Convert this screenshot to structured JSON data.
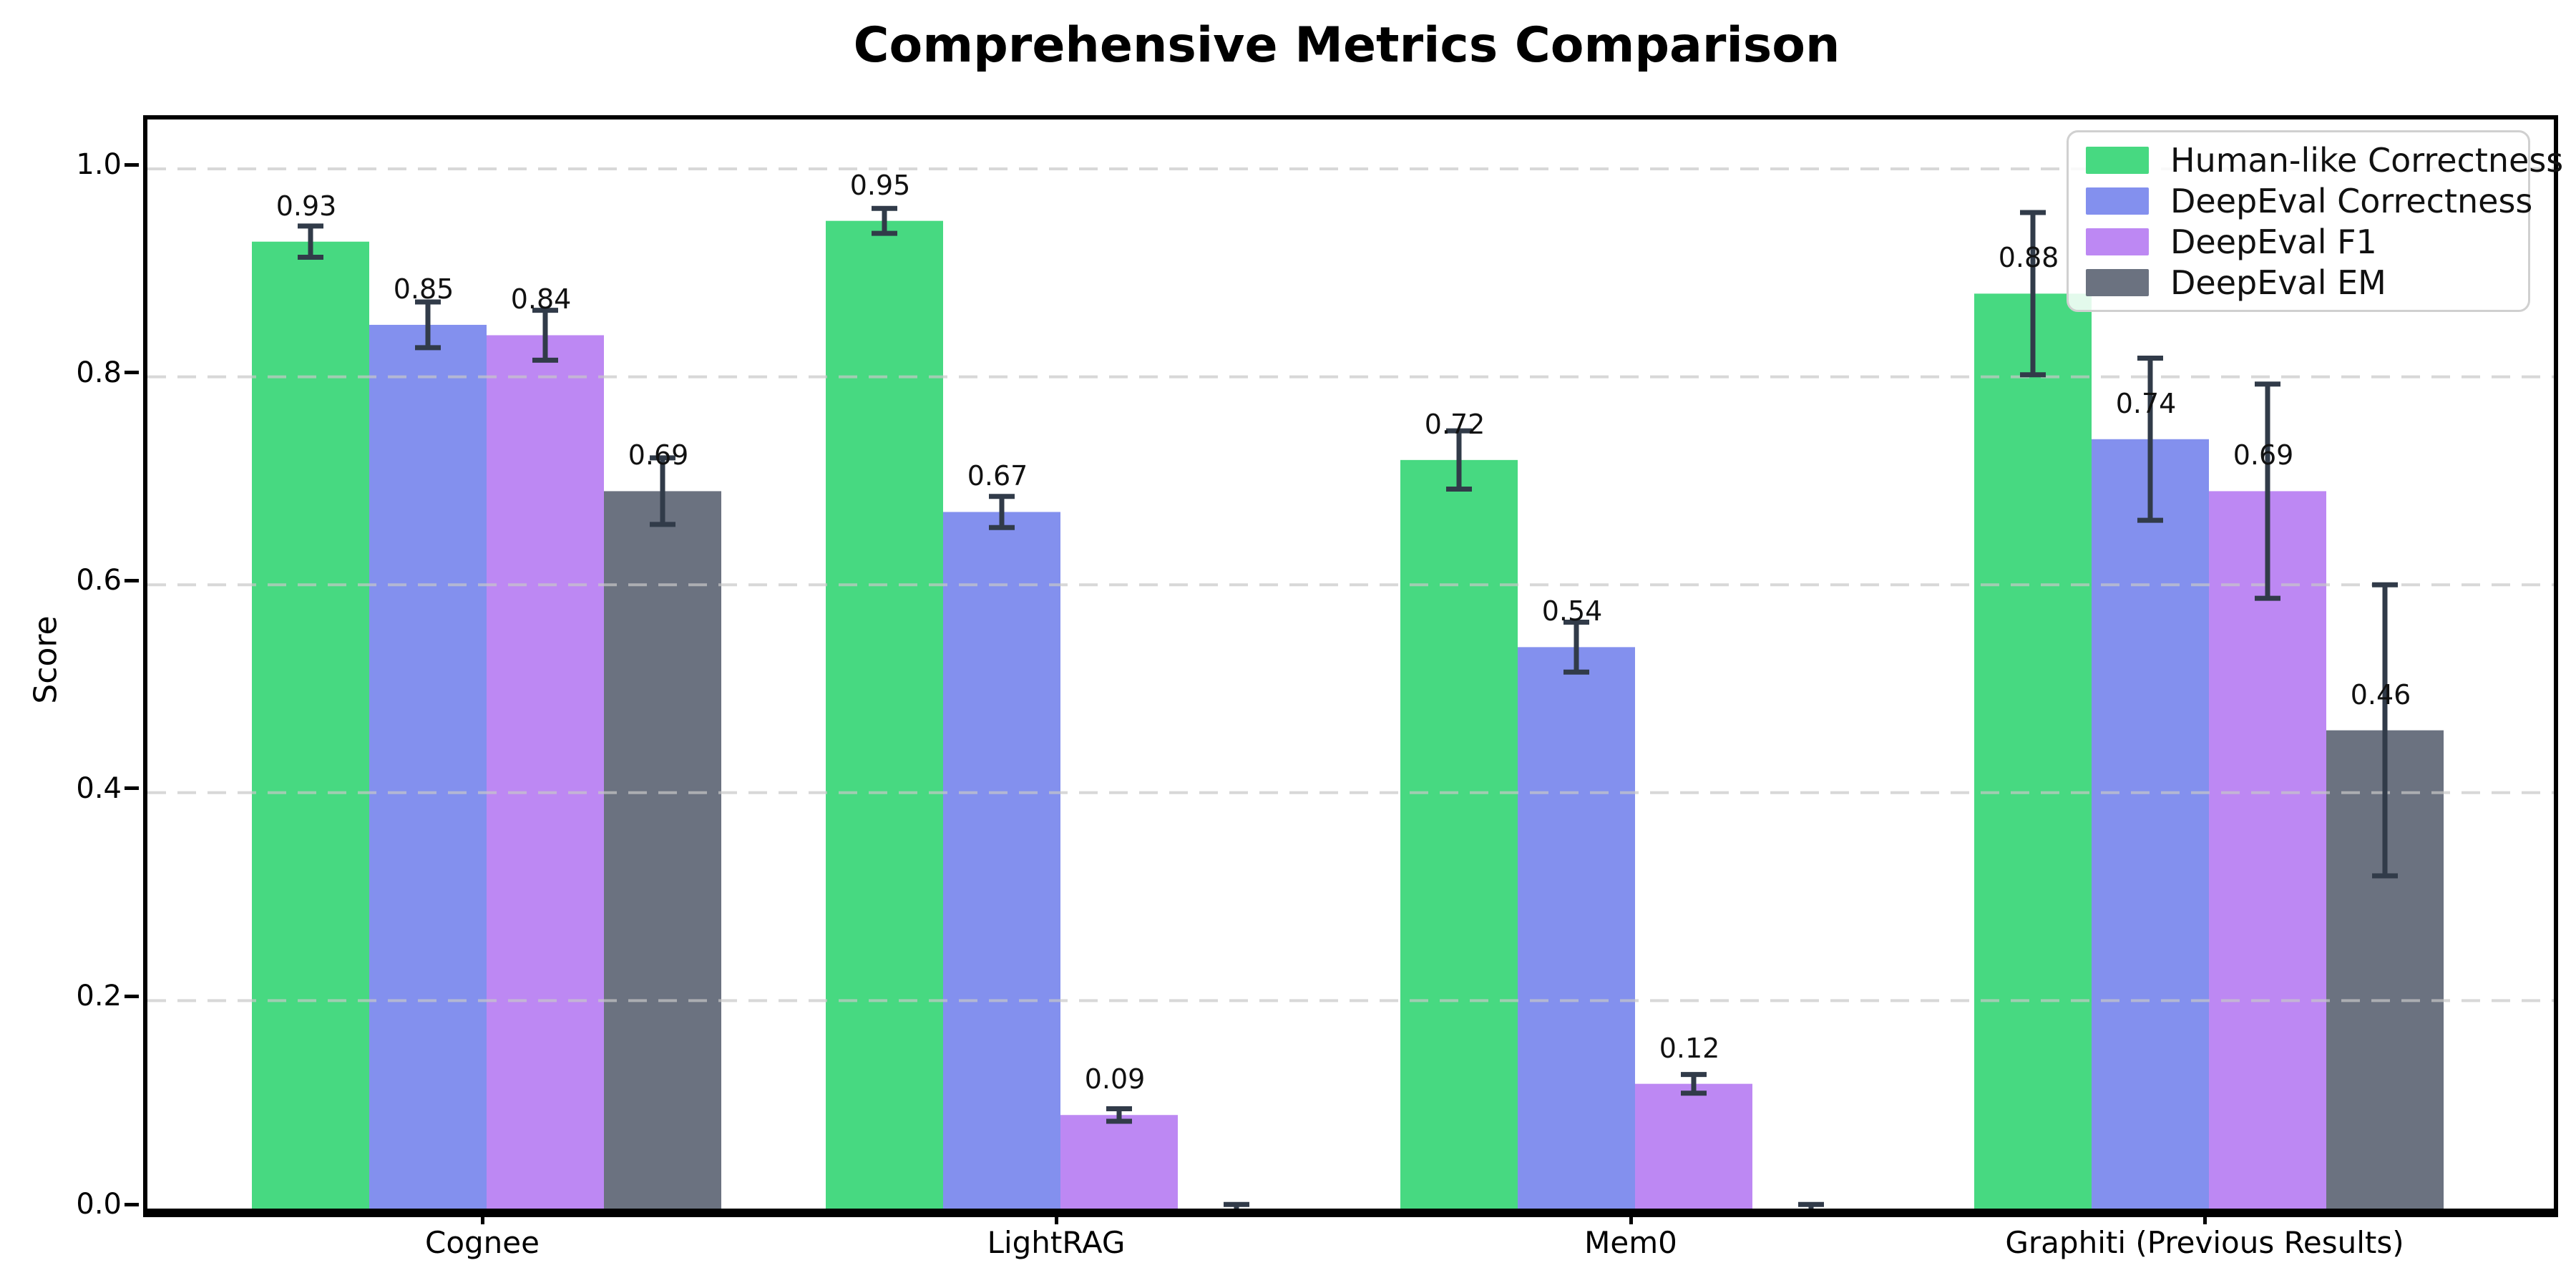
{
  "chart_data": {
    "type": "bar",
    "title": "Comprehensive Metrics Comparison",
    "ylabel": "Score",
    "xlabel": "",
    "categories": [
      "Cognee",
      "LightRAG",
      "Mem0",
      "Graphiti (Previous Results)"
    ],
    "series": [
      {
        "name": "Human-like Correctness",
        "color": "#47d981",
        "values": [
          0.93,
          0.95,
          0.72,
          0.88
        ],
        "errors": [
          0.015,
          0.012,
          0.028,
          0.078
        ],
        "labels": [
          "0.93",
          "0.95",
          "0.72",
          "0.88"
        ]
      },
      {
        "name": "DeepEval Correctness",
        "color": "#8390ee",
        "values": [
          0.85,
          0.67,
          0.54,
          0.74
        ],
        "errors": [
          0.022,
          0.015,
          0.024,
          0.078
        ],
        "labels": [
          "0.85",
          "0.67",
          "0.54",
          "0.74"
        ]
      },
      {
        "name": "DeepEval F1",
        "color": "#bd88f3",
        "values": [
          0.84,
          0.09,
          0.12,
          0.69
        ],
        "errors": [
          0.024,
          0.006,
          0.009,
          0.103
        ],
        "labels": [
          "0.84",
          "0.09",
          "0.12",
          "0.69"
        ]
      },
      {
        "name": "DeepEval EM",
        "color": "#6b7280",
        "values": [
          0.69,
          0.0,
          0.0,
          0.46
        ],
        "errors": [
          0.032,
          0.004,
          0.004,
          0.14
        ],
        "labels": [
          "0.69",
          "",
          "",
          "0.46"
        ]
      }
    ],
    "yticks": {
      "values": [
        0.0,
        0.2,
        0.4,
        0.6,
        0.8,
        1.0
      ],
      "labels": [
        "0.0",
        "0.2",
        "0.4",
        "0.6",
        "0.8",
        "1.0"
      ]
    },
    "ylim": [
      0.0,
      1.05
    ],
    "grid": {
      "axis": "y",
      "style": "dashed"
    },
    "legend": {
      "position": "upper-right"
    },
    "error_bar_color": "#313b49"
  }
}
